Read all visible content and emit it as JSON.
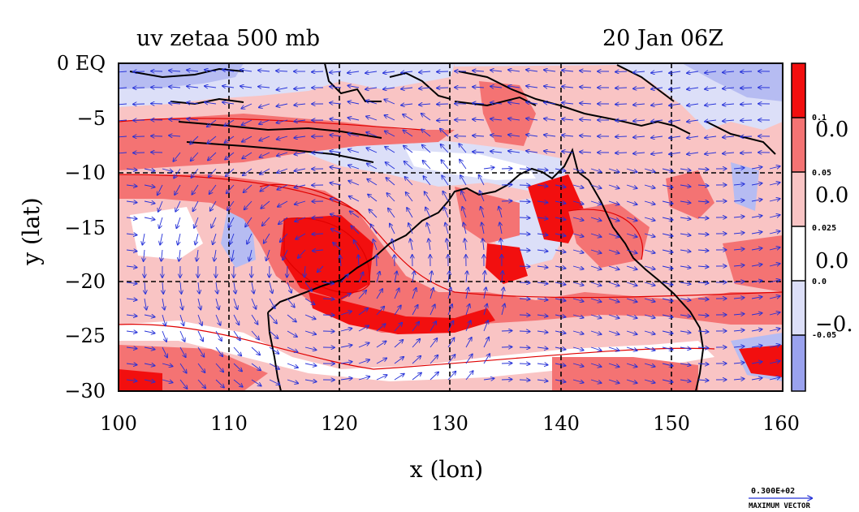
{
  "header": {
    "title": "uv zetaa 500 mb",
    "timestamp": "20 Jan 06Z"
  },
  "axes": {
    "x_label": "x (lon)",
    "y_label": "y (lat)",
    "x_ticks": [
      "100",
      "110",
      "120",
      "130",
      "140",
      "150",
      "160"
    ],
    "y_ticks": [
      "0 EQ",
      "−5",
      "−10",
      "−15",
      "−20",
      "−25",
      "−30"
    ],
    "x_range": [
      100,
      160
    ],
    "y_range": [
      -30,
      0
    ],
    "gridlines": "dashed at 10° lon / 5° lat"
  },
  "colorbar": {
    "levels": [
      "0.1",
      "0.05",
      "0.025",
      "0.0",
      "-0.05"
    ],
    "big_labels": [
      "0.0",
      "0.0",
      "0.0",
      "−0."
    ],
    "bands": [
      {
        "color": "#f20f0f"
      },
      {
        "color": "#f47373"
      },
      {
        "color": "#f9c4c4"
      },
      {
        "color": "#ffffff"
      },
      {
        "color": "#dcdff8"
      },
      {
        "color": "#9aa2ee"
      }
    ]
  },
  "vector_legend": {
    "value": "0.300E+02",
    "label": "MAXIMUM VECTOR"
  },
  "colors": {
    "positive_strong": "#f20f0f",
    "positive": "#f47373",
    "positive_weak": "#f9c4c4",
    "negative_weak": "#dcdff8",
    "negative": "#9aa2ee",
    "vectors": "#2430d8",
    "coast": "#000000",
    "contour": "#e00000"
  }
}
